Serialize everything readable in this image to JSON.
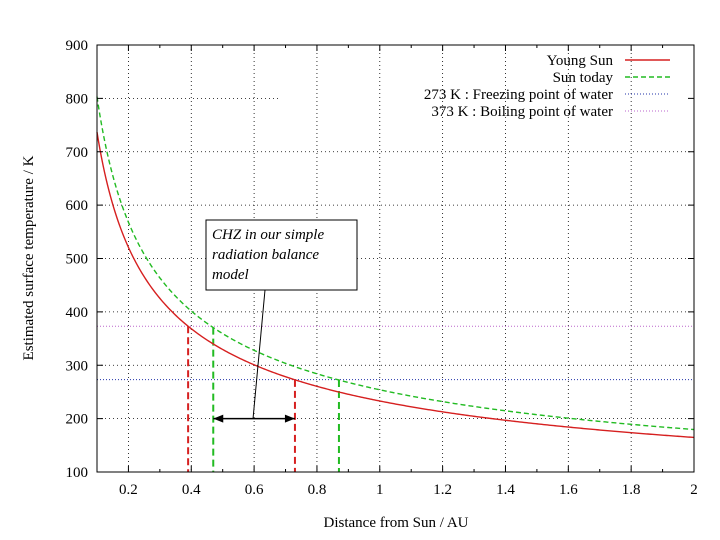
{
  "chart_data": {
    "type": "line",
    "xlabel": "Distance from Sun / AU",
    "ylabel": "Estimated surface temperature / K",
    "xlim": [
      0.1,
      2.0
    ],
    "ylim": [
      100,
      900
    ],
    "xticks": [
      0.2,
      0.4,
      0.6,
      0.8,
      1,
      1.2,
      1.4,
      1.6,
      1.8,
      2
    ],
    "xtick_labels": [
      "0.2",
      "0.4",
      "0.6",
      "0.8",
      "1",
      "1.2",
      "1.4",
      "1.6",
      "1.8",
      "2"
    ],
    "yticks": [
      100,
      200,
      300,
      400,
      500,
      600,
      700,
      800,
      900
    ],
    "ytick_labels": [
      "100",
      "200",
      "300",
      "400",
      "500",
      "600",
      "700",
      "800",
      "900"
    ],
    "grid": true,
    "legend_position": "top-right",
    "series": [
      {
        "name": "Young Sun",
        "color": "#d62020",
        "style": "solid",
        "model": "T = k / sqrt(d)",
        "k": 233
      },
      {
        "name": "Sun today",
        "color": "#22bb22",
        "style": "dashed",
        "model": "T = k / sqrt(d)",
        "k": 254
      }
    ],
    "reference_lines": [
      {
        "name": "273 K : Freezing point of water",
        "y": 273,
        "color": "#2233aa",
        "style": "dotted"
      },
      {
        "name": "373 K : Boiling point of water",
        "y": 373,
        "color": "#bb66cc",
        "style": "dotted"
      }
    ],
    "vertical_markers": [
      {
        "x": 0.39,
        "series": "Young Sun",
        "color": "#d62020"
      },
      {
        "x": 0.73,
        "series": "Young Sun",
        "color": "#d62020"
      },
      {
        "x": 0.47,
        "series": "Sun today",
        "color": "#22bb22"
      },
      {
        "x": 0.87,
        "series": "Sun today",
        "color": "#22bb22"
      }
    ],
    "chz_arrow": {
      "x_from": 0.47,
      "x_to": 0.73,
      "y": 200
    },
    "annotation": {
      "lines": [
        "CHZ in our simple",
        "radiation balance",
        "model"
      ]
    }
  }
}
